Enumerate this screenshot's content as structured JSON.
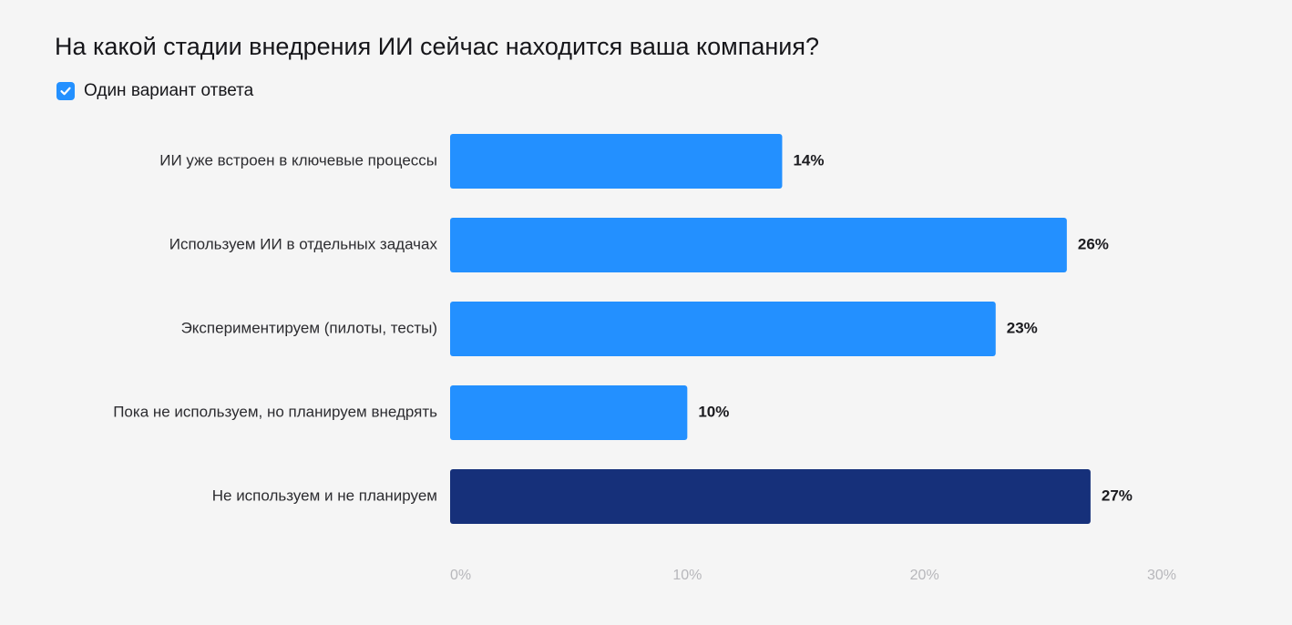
{
  "title": "На какой стадии внедрения ИИ сейчас находится ваша компания?",
  "note": {
    "icon": "checkbox-checked-icon",
    "label": "Один вариант ответа"
  },
  "colors": {
    "bar": "#2390ff",
    "bar_highlight": "#16307a",
    "checkbox": "#2390ff"
  },
  "chart_data": {
    "type": "bar",
    "orientation": "horizontal",
    "categories": [
      "ИИ уже встроен в ключевые процессы",
      "Используем ИИ в отдельных задачах",
      "Экспериментируем (пилоты, тесты)",
      "Пока не используем, но планируем внедрять",
      "Не используем и не планируем"
    ],
    "values": [
      14,
      26,
      23,
      10,
      27
    ],
    "value_labels": [
      "14%",
      "26%",
      "23%",
      "10%",
      "27%"
    ],
    "highlighted": [
      false,
      false,
      false,
      false,
      true
    ],
    "xlim": [
      0,
      30
    ],
    "xticks": [
      0,
      10,
      20,
      30
    ],
    "xtick_labels": [
      "0%",
      "10%",
      "20%",
      "30%"
    ],
    "grid": false,
    "legend": "none"
  }
}
